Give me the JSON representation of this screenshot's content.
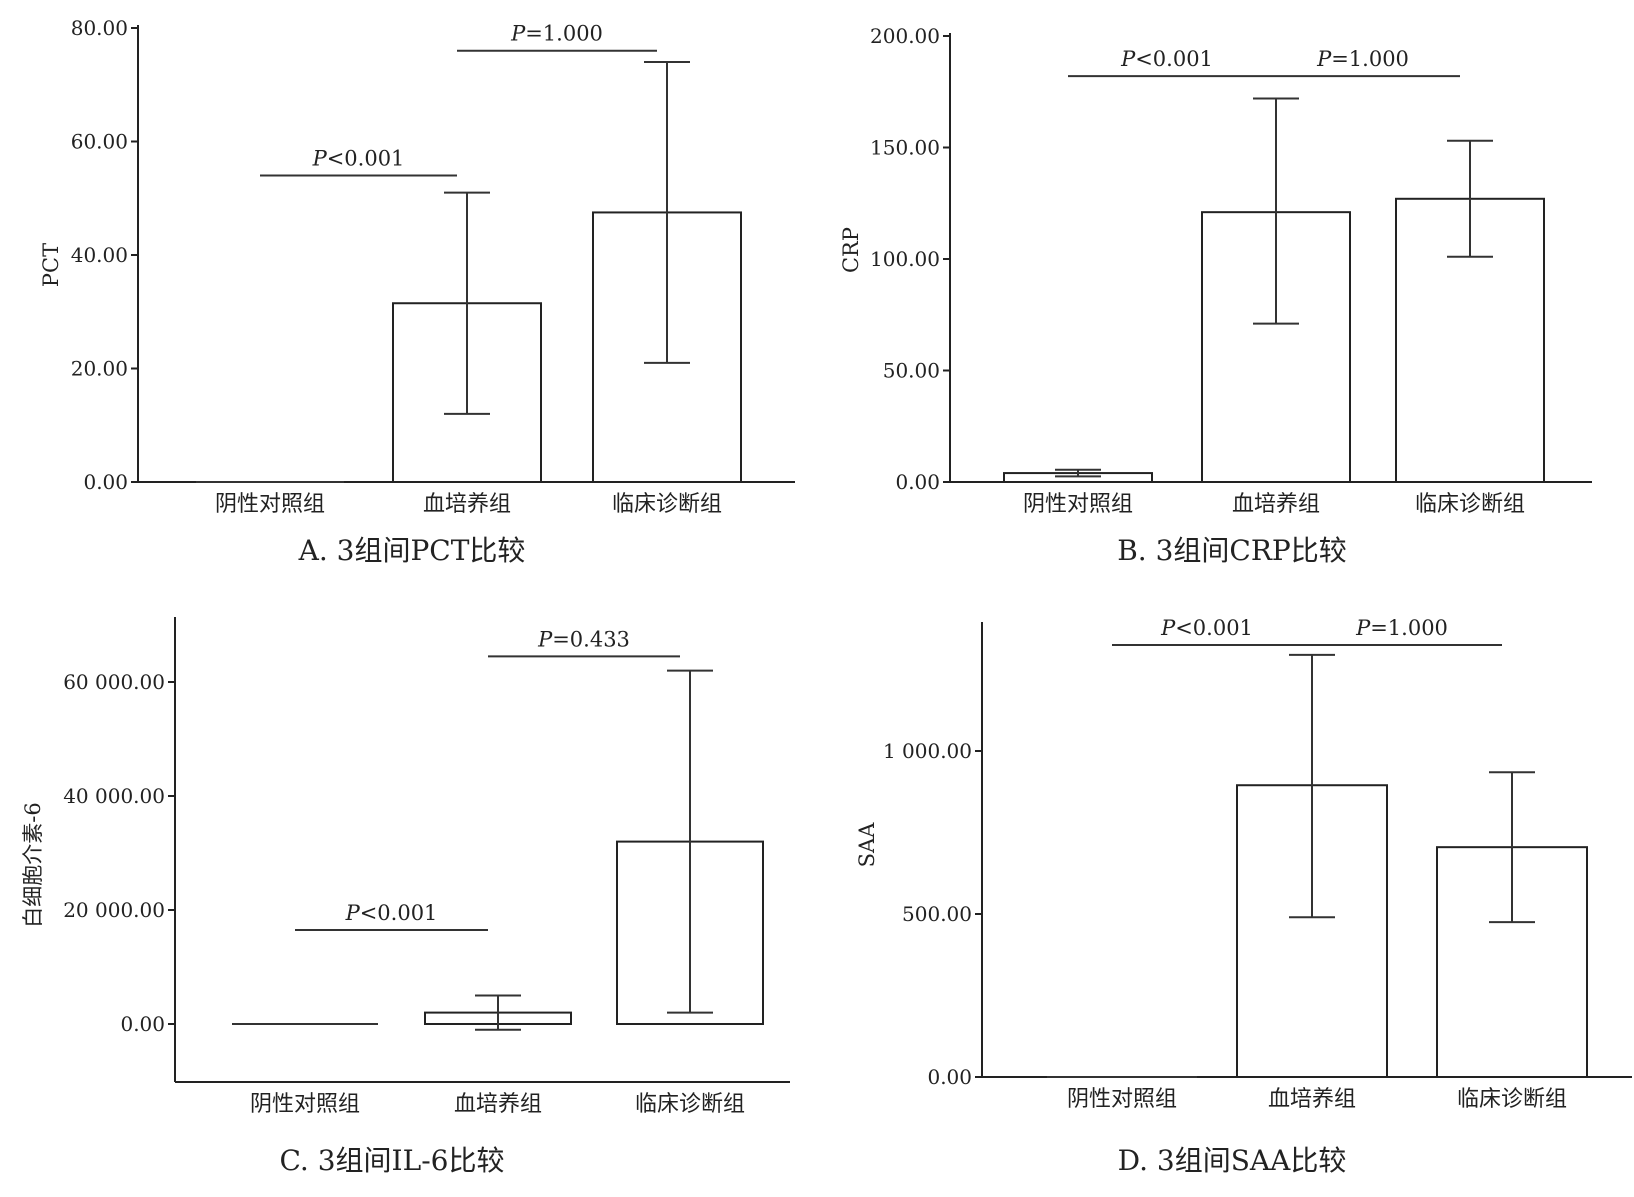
{
  "chart_data": [
    {
      "type": "bar",
      "panel_caption": "A. 3组间PCT比较",
      "ylabel": "PCT",
      "categories": [
        "阴性对照组",
        "血培养组",
        "临床诊断组"
      ],
      "values": [
        0.1,
        31.5,
        47.5
      ],
      "error_low": [
        0.0,
        12.0,
        21.0
      ],
      "error_high": [
        0.2,
        51.0,
        74.0
      ],
      "ylim": [
        0,
        80
      ],
      "yticks": [
        "0.00",
        "20.00",
        "40.00",
        "60.00",
        "80.00"
      ],
      "yticks_values": [
        0,
        20,
        40,
        60,
        80
      ],
      "significance": [
        {
          "from": 0,
          "to": 1,
          "label": "P<0.001",
          "y": 54
        },
        {
          "from": 1,
          "to": 2,
          "label": "P=1.000",
          "y": 76
        }
      ]
    },
    {
      "type": "bar",
      "panel_caption": "B. 3组间CRP比较",
      "ylabel": "CRP",
      "categories": [
        "阴性对照组",
        "血培养组",
        "临床诊断组"
      ],
      "values": [
        4.0,
        121.0,
        127.0
      ],
      "error_low": [
        2.5,
        71.0,
        101.0
      ],
      "error_high": [
        5.5,
        172.0,
        153.0
      ],
      "ylim": [
        0,
        200
      ],
      "yticks": [
        "0.00",
        "50.00",
        "100.00",
        "150.00",
        "200.00"
      ],
      "yticks_values": [
        0,
        50,
        100,
        150,
        200
      ],
      "significance": [
        {
          "from": 0,
          "to": 1,
          "label": "P<0.001",
          "y": 182
        },
        {
          "from": 1,
          "to": 2,
          "label": "P=1.000",
          "y": 182
        }
      ]
    },
    {
      "type": "bar",
      "panel_caption": "C. 3组间IL-6比较",
      "ylabel": "白细胞介素-6",
      "categories": [
        "阴性对照组",
        "血培养组",
        "临床诊断组"
      ],
      "values": [
        0,
        2000,
        32000
      ],
      "error_low": [
        0,
        -1000,
        2000
      ],
      "error_high": [
        0,
        5000,
        62000
      ],
      "ylim": [
        -10000,
        70000
      ],
      "yticks": [
        "0.00",
        "20 000.00",
        "40 000.00",
        "60 000.00"
      ],
      "yticks_values": [
        0,
        20000,
        40000,
        60000
      ],
      "significance": [
        {
          "from": 0,
          "to": 1,
          "label": "P<0.001",
          "y": 16500
        },
        {
          "from": 1,
          "to": 2,
          "label": "P=0.433",
          "y": 64500
        }
      ]
    },
    {
      "type": "bar",
      "panel_caption": "D. 3组间SAA比较",
      "ylabel": "SAA",
      "categories": [
        "阴性对照组",
        "血培养组",
        "临床诊断组"
      ],
      "values": [
        3,
        895,
        705
      ],
      "error_low": [
        2,
        490,
        475
      ],
      "error_high": [
        4,
        1295,
        935
      ],
      "ylim": [
        0,
        1400
      ],
      "yticks": [
        "0.00",
        "500.00",
        "1 000.00"
      ],
      "yticks_values": [
        0,
        500,
        1000
      ],
      "significance": [
        {
          "from": 0,
          "to": 1,
          "label": "P<0.001",
          "y": 1325
        },
        {
          "from": 1,
          "to": 2,
          "label": "P=1.000",
          "y": 1325
        }
      ]
    }
  ]
}
